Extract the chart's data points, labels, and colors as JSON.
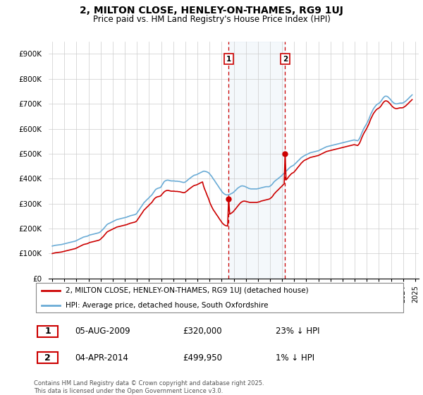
{
  "title": "2, MILTON CLOSE, HENLEY-ON-THAMES, RG9 1UJ",
  "subtitle": "Price paid vs. HM Land Registry's House Price Index (HPI)",
  "legend_line1": "2, MILTON CLOSE, HENLEY-ON-THAMES, RG9 1UJ (detached house)",
  "legend_line2": "HPI: Average price, detached house, South Oxfordshire",
  "footer": "Contains HM Land Registry data © Crown copyright and database right 2025.\nThis data is licensed under the Open Government Licence v3.0.",
  "marker1_label": "1",
  "marker1_date": "05-AUG-2009",
  "marker1_price": "£320,000",
  "marker1_hpi": "23% ↓ HPI",
  "marker1_x": 2009.58,
  "marker1_price_val": 320000,
  "marker2_label": "2",
  "marker2_date": "04-APR-2014",
  "marker2_price": "£499,950",
  "marker2_hpi": "1% ↓ HPI",
  "marker2_x": 2014.25,
  "marker2_price_val": 499950,
  "hpi_color": "#6bacd6",
  "price_color": "#cc0000",
  "marker_color": "#cc0000",
  "shade_color": "#cfe0f0",
  "vline_color": "#cc0000",
  "ylim": [
    0,
    950000
  ],
  "yticks": [
    0,
    100000,
    200000,
    300000,
    400000,
    500000,
    600000,
    700000,
    800000,
    900000
  ],
  "ytick_labels": [
    "£0",
    "£100K",
    "£200K",
    "£300K",
    "£400K",
    "£500K",
    "£600K",
    "£700K",
    "£800K",
    "£900K"
  ],
  "hpi_years": [
    1995.0,
    1995.08,
    1995.17,
    1995.25,
    1995.33,
    1995.42,
    1995.5,
    1995.58,
    1995.67,
    1995.75,
    1995.83,
    1995.92,
    1996.0,
    1996.08,
    1996.17,
    1996.25,
    1996.33,
    1996.42,
    1996.5,
    1996.58,
    1996.67,
    1996.75,
    1996.83,
    1996.92,
    1997.0,
    1997.08,
    1997.17,
    1997.25,
    1997.33,
    1997.42,
    1997.5,
    1997.58,
    1997.67,
    1997.75,
    1997.83,
    1997.92,
    1998.0,
    1998.08,
    1998.17,
    1998.25,
    1998.33,
    1998.42,
    1998.5,
    1998.58,
    1998.67,
    1998.75,
    1998.83,
    1998.92,
    1999.0,
    1999.08,
    1999.17,
    1999.25,
    1999.33,
    1999.42,
    1999.5,
    1999.58,
    1999.67,
    1999.75,
    1999.83,
    1999.92,
    2000.0,
    2000.08,
    2000.17,
    2000.25,
    2000.33,
    2000.42,
    2000.5,
    2000.58,
    2000.67,
    2000.75,
    2000.83,
    2000.92,
    2001.0,
    2001.08,
    2001.17,
    2001.25,
    2001.33,
    2001.42,
    2001.5,
    2001.58,
    2001.67,
    2001.75,
    2001.83,
    2001.92,
    2002.0,
    2002.08,
    2002.17,
    2002.25,
    2002.33,
    2002.42,
    2002.5,
    2002.58,
    2002.67,
    2002.75,
    2002.83,
    2002.92,
    2003.0,
    2003.08,
    2003.17,
    2003.25,
    2003.33,
    2003.42,
    2003.5,
    2003.58,
    2003.67,
    2003.75,
    2003.83,
    2003.92,
    2004.0,
    2004.08,
    2004.17,
    2004.25,
    2004.33,
    2004.42,
    2004.5,
    2004.58,
    2004.67,
    2004.75,
    2004.83,
    2004.92,
    2005.0,
    2005.08,
    2005.17,
    2005.25,
    2005.33,
    2005.42,
    2005.5,
    2005.58,
    2005.67,
    2005.75,
    2005.83,
    2005.92,
    2006.0,
    2006.08,
    2006.17,
    2006.25,
    2006.33,
    2006.42,
    2006.5,
    2006.58,
    2006.67,
    2006.75,
    2006.83,
    2006.92,
    2007.0,
    2007.08,
    2007.17,
    2007.25,
    2007.33,
    2007.42,
    2007.5,
    2007.58,
    2007.67,
    2007.75,
    2007.83,
    2007.92,
    2008.0,
    2008.08,
    2008.17,
    2008.25,
    2008.33,
    2008.42,
    2008.5,
    2008.58,
    2008.67,
    2008.75,
    2008.83,
    2008.92,
    2009.0,
    2009.08,
    2009.17,
    2009.25,
    2009.33,
    2009.42,
    2009.5,
    2009.58,
    2009.67,
    2009.75,
    2009.83,
    2009.92,
    2010.0,
    2010.08,
    2010.17,
    2010.25,
    2010.33,
    2010.42,
    2010.5,
    2010.58,
    2010.67,
    2010.75,
    2010.83,
    2010.92,
    2011.0,
    2011.08,
    2011.17,
    2011.25,
    2011.33,
    2011.42,
    2011.5,
    2011.58,
    2011.67,
    2011.75,
    2011.83,
    2011.92,
    2012.0,
    2012.08,
    2012.17,
    2012.25,
    2012.33,
    2012.42,
    2012.5,
    2012.58,
    2012.67,
    2012.75,
    2012.83,
    2012.92,
    2013.0,
    2013.08,
    2013.17,
    2013.25,
    2013.33,
    2013.42,
    2013.5,
    2013.58,
    2013.67,
    2013.75,
    2013.83,
    2013.92,
    2014.0,
    2014.08,
    2014.17,
    2014.25,
    2014.33,
    2014.42,
    2014.5,
    2014.58,
    2014.67,
    2014.75,
    2014.83,
    2014.92,
    2015.0,
    2015.08,
    2015.17,
    2015.25,
    2015.33,
    2015.42,
    2015.5,
    2015.58,
    2015.67,
    2015.75,
    2015.83,
    2015.92,
    2016.0,
    2016.08,
    2016.17,
    2016.25,
    2016.33,
    2016.42,
    2016.5,
    2016.58,
    2016.67,
    2016.75,
    2016.83,
    2016.92,
    2017.0,
    2017.08,
    2017.17,
    2017.25,
    2017.33,
    2017.42,
    2017.5,
    2017.58,
    2017.67,
    2017.75,
    2017.83,
    2017.92,
    2018.0,
    2018.08,
    2018.17,
    2018.25,
    2018.33,
    2018.42,
    2018.5,
    2018.58,
    2018.67,
    2018.75,
    2018.83,
    2018.92,
    2019.0,
    2019.08,
    2019.17,
    2019.25,
    2019.33,
    2019.42,
    2019.5,
    2019.58,
    2019.67,
    2019.75,
    2019.83,
    2019.92,
    2020.0,
    2020.08,
    2020.17,
    2020.25,
    2020.33,
    2020.42,
    2020.5,
    2020.58,
    2020.67,
    2020.75,
    2020.83,
    2020.92,
    2021.0,
    2021.08,
    2021.17,
    2021.25,
    2021.33,
    2021.42,
    2021.5,
    2021.58,
    2021.67,
    2021.75,
    2021.83,
    2021.92,
    2022.0,
    2022.08,
    2022.17,
    2022.25,
    2022.33,
    2022.42,
    2022.5,
    2022.58,
    2022.67,
    2022.75,
    2022.83,
    2022.92,
    2023.0,
    2023.08,
    2023.17,
    2023.25,
    2023.33,
    2023.42,
    2023.5,
    2023.58,
    2023.67,
    2023.75,
    2023.83,
    2023.92,
    2024.0,
    2024.08,
    2024.17,
    2024.25,
    2024.33,
    2024.42,
    2024.5,
    2024.58,
    2024.67,
    2024.75
  ],
  "hpi_vals": [
    130000,
    131000,
    132000,
    133000,
    133500,
    134000,
    134500,
    135000,
    135500,
    136000,
    137000,
    138000,
    139000,
    140000,
    141000,
    142000,
    143000,
    144000,
    145000,
    146000,
    147000,
    148000,
    149000,
    150000,
    152000,
    154000,
    156000,
    158000,
    160000,
    162000,
    164000,
    166000,
    167000,
    168000,
    169000,
    170000,
    172000,
    174000,
    175000,
    176000,
    177000,
    178000,
    179000,
    180000,
    181000,
    182000,
    183000,
    185000,
    188000,
    192000,
    196000,
    200000,
    205000,
    210000,
    215000,
    218000,
    220000,
    222000,
    224000,
    226000,
    228000,
    230000,
    232000,
    234000,
    236000,
    237000,
    238000,
    239000,
    240000,
    241000,
    242000,
    243000,
    244000,
    245000,
    246000,
    248000,
    249000,
    251000,
    252000,
    253000,
    254000,
    255000,
    256000,
    258000,
    262000,
    268000,
    274000,
    280000,
    286000,
    292000,
    298000,
    304000,
    308000,
    312000,
    316000,
    320000,
    324000,
    328000,
    332000,
    336000,
    342000,
    348000,
    354000,
    358000,
    360000,
    362000,
    363000,
    364000,
    368000,
    375000,
    382000,
    388000,
    391000,
    393000,
    394000,
    394000,
    393000,
    392000,
    391000,
    391000,
    391000,
    391000,
    390000,
    390000,
    390000,
    389000,
    389000,
    388000,
    387000,
    386000,
    385000,
    385000,
    387000,
    390000,
    393000,
    397000,
    400000,
    403000,
    406000,
    409000,
    412000,
    414000,
    415000,
    416000,
    418000,
    420000,
    422000,
    424000,
    426000,
    428000,
    430000,
    430000,
    429000,
    428000,
    426000,
    424000,
    420000,
    415000,
    410000,
    404000,
    398000,
    392000,
    386000,
    380000,
    374000,
    368000,
    362000,
    356000,
    350000,
    345000,
    341000,
    338000,
    336000,
    335000,
    335000,
    336000,
    337000,
    339000,
    341000,
    343000,
    346000,
    350000,
    354000,
    358000,
    362000,
    365000,
    368000,
    370000,
    371000,
    371000,
    370000,
    369000,
    367000,
    365000,
    363000,
    361000,
    360000,
    359000,
    359000,
    359000,
    359000,
    359000,
    359000,
    359000,
    360000,
    361000,
    362000,
    363000,
    364000,
    365000,
    366000,
    367000,
    368000,
    368000,
    368000,
    368000,
    370000,
    373000,
    377000,
    382000,
    387000,
    391000,
    394000,
    397000,
    400000,
    403000,
    406000,
    410000,
    414000,
    418000,
    422000,
    426000,
    430000,
    434000,
    438000,
    442000,
    446000,
    449000,
    451000,
    453000,
    456000,
    460000,
    464000,
    468000,
    472000,
    476000,
    480000,
    484000,
    487000,
    490000,
    492000,
    494000,
    496000,
    498000,
    500000,
    502000,
    504000,
    505000,
    506000,
    507000,
    508000,
    509000,
    510000,
    511000,
    512000,
    514000,
    516000,
    518000,
    520000,
    522000,
    524000,
    526000,
    528000,
    529000,
    530000,
    531000,
    532000,
    533000,
    534000,
    535000,
    536000,
    537000,
    538000,
    539000,
    540000,
    541000,
    542000,
    543000,
    544000,
    545000,
    546000,
    547000,
    548000,
    549000,
    550000,
    551000,
    552000,
    553000,
    554000,
    555000,
    555000,
    554000,
    553000,
    552000,
    556000,
    563000,
    572000,
    582000,
    592000,
    600000,
    607000,
    614000,
    621000,
    629000,
    638000,
    648000,
    658000,
    667000,
    675000,
    682000,
    688000,
    693000,
    697000,
    700000,
    702000,
    705000,
    710000,
    716000,
    722000,
    727000,
    730000,
    731000,
    730000,
    728000,
    724000,
    720000,
    715000,
    710000,
    706000,
    703000,
    701000,
    700000,
    700000,
    701000,
    702000,
    703000,
    703000,
    703000,
    704000,
    706000,
    709000,
    712000,
    716000,
    720000,
    724000,
    728000,
    732000,
    736000
  ],
  "price_years": [
    1995.0,
    1995.08,
    1995.17,
    1995.25,
    1995.33,
    1995.42,
    1995.5,
    1995.58,
    1995.67,
    1995.75,
    1995.83,
    1995.92,
    1996.0,
    1996.08,
    1996.17,
    1996.25,
    1996.33,
    1996.42,
    1996.5,
    1996.58,
    1996.67,
    1996.75,
    1996.83,
    1996.92,
    1997.0,
    1997.08,
    1997.17,
    1997.25,
    1997.33,
    1997.42,
    1997.5,
    1997.58,
    1997.67,
    1997.75,
    1997.83,
    1997.92,
    1998.0,
    1998.08,
    1998.17,
    1998.25,
    1998.33,
    1998.42,
    1998.5,
    1998.58,
    1998.67,
    1998.75,
    1998.83,
    1998.92,
    1999.0,
    1999.08,
    1999.17,
    1999.25,
    1999.33,
    1999.42,
    1999.5,
    1999.58,
    1999.67,
    1999.75,
    1999.83,
    1999.92,
    2000.0,
    2000.08,
    2000.17,
    2000.25,
    2000.33,
    2000.42,
    2000.5,
    2000.58,
    2000.67,
    2000.75,
    2000.83,
    2000.92,
    2001.0,
    2001.08,
    2001.17,
    2001.25,
    2001.33,
    2001.42,
    2001.5,
    2001.58,
    2001.67,
    2001.75,
    2001.83,
    2001.92,
    2002.0,
    2002.08,
    2002.17,
    2002.25,
    2002.33,
    2002.42,
    2002.5,
    2002.58,
    2002.67,
    2002.75,
    2002.83,
    2002.92,
    2003.0,
    2003.08,
    2003.17,
    2003.25,
    2003.33,
    2003.42,
    2003.5,
    2003.58,
    2003.67,
    2003.75,
    2003.83,
    2003.92,
    2004.0,
    2004.08,
    2004.17,
    2004.25,
    2004.33,
    2004.42,
    2004.5,
    2004.58,
    2004.67,
    2004.75,
    2004.83,
    2004.92,
    2005.0,
    2005.08,
    2005.17,
    2005.25,
    2005.33,
    2005.42,
    2005.5,
    2005.58,
    2005.67,
    2005.75,
    2005.83,
    2005.92,
    2006.0,
    2006.08,
    2006.17,
    2006.25,
    2006.33,
    2006.42,
    2006.5,
    2006.58,
    2006.67,
    2006.75,
    2006.83,
    2006.92,
    2007.0,
    2007.08,
    2007.17,
    2007.25,
    2007.33,
    2007.42,
    2007.5,
    2007.58,
    2007.67,
    2007.75,
    2007.83,
    2007.92,
    2008.0,
    2008.08,
    2008.17,
    2008.25,
    2008.33,
    2008.42,
    2008.5,
    2008.58,
    2008.67,
    2008.75,
    2008.83,
    2008.92,
    2009.0,
    2009.08,
    2009.17,
    2009.25,
    2009.33,
    2009.42,
    2009.5,
    2009.58,
    2009.67,
    2009.75,
    2009.83,
    2009.92,
    2010.0,
    2010.08,
    2010.17,
    2010.25,
    2010.33,
    2010.42,
    2010.5,
    2010.58,
    2010.67,
    2010.75,
    2010.83,
    2010.92,
    2011.0,
    2011.08,
    2011.17,
    2011.25,
    2011.33,
    2011.42,
    2011.5,
    2011.58,
    2011.67,
    2011.75,
    2011.83,
    2011.92,
    2012.0,
    2012.08,
    2012.17,
    2012.25,
    2012.33,
    2012.42,
    2012.5,
    2012.58,
    2012.67,
    2012.75,
    2012.83,
    2012.92,
    2013.0,
    2013.08,
    2013.17,
    2013.25,
    2013.33,
    2013.42,
    2013.5,
    2013.58,
    2013.67,
    2013.75,
    2013.83,
    2013.92,
    2014.0,
    2014.08,
    2014.17,
    2014.25,
    2014.33,
    2014.42,
    2014.5,
    2014.58,
    2014.67,
    2014.75,
    2014.83,
    2014.92,
    2015.0,
    2015.08,
    2015.17,
    2015.25,
    2015.33,
    2015.42,
    2015.5,
    2015.58,
    2015.67,
    2015.75,
    2015.83,
    2015.92,
    2016.0,
    2016.08,
    2016.17,
    2016.25,
    2016.33,
    2016.42,
    2016.5,
    2016.58,
    2016.67,
    2016.75,
    2016.83,
    2016.92,
    2017.0,
    2017.08,
    2017.17,
    2017.25,
    2017.33,
    2017.42,
    2017.5,
    2017.58,
    2017.67,
    2017.75,
    2017.83,
    2017.92,
    2018.0,
    2018.08,
    2018.17,
    2018.25,
    2018.33,
    2018.42,
    2018.5,
    2018.58,
    2018.67,
    2018.75,
    2018.83,
    2018.92,
    2019.0,
    2019.08,
    2019.17,
    2019.25,
    2019.33,
    2019.42,
    2019.5,
    2019.58,
    2019.67,
    2019.75,
    2019.83,
    2019.92,
    2020.0,
    2020.08,
    2020.17,
    2020.25,
    2020.33,
    2020.42,
    2020.5,
    2020.58,
    2020.67,
    2020.75,
    2020.83,
    2020.92,
    2021.0,
    2021.08,
    2021.17,
    2021.25,
    2021.33,
    2021.42,
    2021.5,
    2021.58,
    2021.67,
    2021.75,
    2021.83,
    2021.92,
    2022.0,
    2022.08,
    2022.17,
    2022.25,
    2022.33,
    2022.42,
    2022.5,
    2022.58,
    2022.67,
    2022.75,
    2022.83,
    2022.92,
    2023.0,
    2023.08,
    2023.17,
    2023.25,
    2023.33,
    2023.42,
    2023.5,
    2023.58,
    2023.67,
    2023.75,
    2023.83,
    2023.92,
    2024.0,
    2024.08,
    2024.17,
    2024.25,
    2024.33,
    2024.42,
    2024.5,
    2024.58,
    2024.67,
    2024.75
  ],
  "price_vals": [
    100000,
    101000,
    102000,
    103000,
    103500,
    104000,
    104500,
    105000,
    105500,
    106000,
    107000,
    108000,
    109000,
    110000,
    111000,
    112000,
    113000,
    114000,
    115000,
    116000,
    117000,
    118000,
    119000,
    120000,
    122000,
    124000,
    126000,
    128000,
    130000,
    132000,
    134000,
    136000,
    137000,
    138000,
    139000,
    140000,
    142000,
    144000,
    145000,
    146000,
    147000,
    148000,
    149000,
    150000,
    151000,
    152000,
    153000,
    155000,
    158000,
    162000,
    166000,
    170000,
    175000,
    180000,
    185000,
    188000,
    190000,
    192000,
    194000,
    196000,
    198000,
    200000,
    202000,
    204000,
    206000,
    207000,
    208000,
    209000,
    210000,
    211000,
    212000,
    213000,
    214000,
    215000,
    216000,
    218000,
    219000,
    221000,
    222000,
    223000,
    224000,
    225000,
    226000,
    228000,
    232000,
    238000,
    244000,
    250000,
    256000,
    262000,
    268000,
    274000,
    278000,
    282000,
    286000,
    290000,
    294000,
    298000,
    302000,
    306000,
    312000,
    318000,
    322000,
    325000,
    327000,
    328000,
    329000,
    330000,
    333000,
    338000,
    343000,
    347000,
    350000,
    352000,
    353000,
    353000,
    352000,
    351000,
    350000,
    350000,
    350000,
    350000,
    349000,
    349000,
    349000,
    348000,
    348000,
    347000,
    346000,
    345000,
    344000,
    344000,
    346000,
    349000,
    352000,
    356000,
    359000,
    362000,
    365000,
    368000,
    371000,
    373000,
    374000,
    375000,
    377000,
    379000,
    381000,
    383000,
    385000,
    387000,
    372000,
    360000,
    350000,
    340000,
    330000,
    320000,
    308000,
    298000,
    289000,
    281000,
    274000,
    268000,
    262000,
    256000,
    250000,
    244000,
    238000,
    232000,
    226000,
    221000,
    217000,
    214000,
    212000,
    211000,
    210000,
    320000,
    258000,
    260000,
    263000,
    266000,
    270000,
    275000,
    280000,
    285000,
    290000,
    295000,
    300000,
    304000,
    307000,
    309000,
    310000,
    310000,
    309000,
    308000,
    307000,
    306000,
    305000,
    305000,
    305000,
    305000,
    305000,
    305000,
    305000,
    305000,
    306000,
    307000,
    308000,
    310000,
    311000,
    312000,
    313000,
    314000,
    315000,
    316000,
    317000,
    318000,
    320000,
    323000,
    327000,
    332000,
    338000,
    343000,
    347000,
    351000,
    355000,
    359000,
    363000,
    367000,
    371000,
    375000,
    379000,
    499950,
    395000,
    400000,
    405000,
    410000,
    415000,
    419000,
    422000,
    424000,
    427000,
    432000,
    437000,
    442000,
    447000,
    452000,
    457000,
    462000,
    466000,
    470000,
    473000,
    475000,
    477000,
    479000,
    481000,
    483000,
    485000,
    486000,
    487000,
    488000,
    489000,
    490000,
    491000,
    492000,
    493000,
    495000,
    497000,
    499000,
    501000,
    503000,
    505000,
    507000,
    509000,
    510000,
    511000,
    512000,
    513000,
    514000,
    515000,
    516000,
    517000,
    518000,
    519000,
    520000,
    521000,
    522000,
    523000,
    524000,
    525000,
    526000,
    527000,
    528000,
    529000,
    530000,
    531000,
    532000,
    533000,
    534000,
    535000,
    536000,
    536000,
    535000,
    534000,
    533000,
    537000,
    544000,
    553000,
    563000,
    573000,
    581000,
    588000,
    595000,
    602000,
    610000,
    619000,
    629000,
    639000,
    648000,
    656000,
    663000,
    669000,
    674000,
    678000,
    681000,
    683000,
    686000,
    691000,
    697000,
    703000,
    708000,
    711000,
    712000,
    711000,
    709000,
    705000,
    701000,
    696000,
    691000,
    687000,
    684000,
    682000,
    681000,
    681000,
    682000,
    683000,
    684000,
    684000,
    684000,
    685000,
    687000,
    690000,
    693000,
    697000,
    701000,
    705000,
    709000,
    713000,
    717000
  ]
}
